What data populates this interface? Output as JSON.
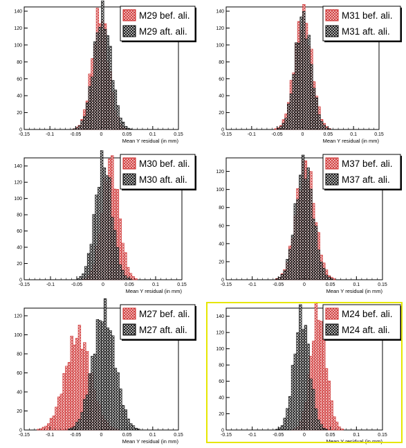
{
  "colors": {
    "before": "#cc2a2a",
    "before_fill": "#f3c6c6",
    "after": "#000000",
    "after_fill": "#bfbfbf",
    "highlight": "#e6e600"
  },
  "chart_data": [
    {
      "type": "histogram",
      "name": "M29",
      "xlabel": "Mean Y residual (in mm)",
      "xlim": [
        -0.15,
        0.15
      ],
      "ylim": [
        0,
        145
      ],
      "xticks": [
        "-0.15",
        "-0.1",
        "-0.05",
        "0",
        "0.05",
        "0.1",
        "0.15"
      ],
      "yticks": [
        "0",
        "20",
        "40",
        "60",
        "80",
        "100",
        "120",
        "140"
      ],
      "legend": [
        "M29 bef. ali.",
        "M29 aft. ali."
      ],
      "series": [
        {
          "name": "M29 bef. ali.",
          "mean": -0.002,
          "sigma": 0.016,
          "peak": 136
        },
        {
          "name": "M29 aft. ali.",
          "mean": 0.002,
          "sigma": 0.017,
          "peak": 136
        }
      ]
    },
    {
      "type": "histogram",
      "name": "M31",
      "xlabel": "Mean Y residual (in mm)",
      "xlim": [
        -0.15,
        0.15
      ],
      "ylim": [
        0,
        145
      ],
      "xticks": [
        "-0.15",
        "-0.1",
        "-0.05",
        "0",
        "0.05",
        "0.1",
        "0.15"
      ],
      "yticks": [
        "0",
        "20",
        "40",
        "60",
        "80",
        "100",
        "120",
        "140"
      ],
      "legend": [
        "M31 bef. ali.",
        "M31 aft. ali."
      ],
      "series": [
        {
          "name": "M31 bef. ali.",
          "mean": 0.001,
          "sigma": 0.017,
          "peak": 136
        },
        {
          "name": "M31 aft. ali.",
          "mean": 0.001,
          "sigma": 0.016,
          "peak": 132
        }
      ]
    },
    {
      "type": "histogram",
      "name": "M30",
      "xlabel": "Mean Y residual (in mm)",
      "xlim": [
        -0.15,
        0.15
      ],
      "ylim": [
        0,
        150
      ],
      "xticks": [
        "-0.15",
        "-0.1",
        "-0.05",
        "0",
        "0.05",
        "0.1",
        "0.15"
      ],
      "yticks": [
        "0",
        "20",
        "40",
        "60",
        "80",
        "100",
        "120",
        "140"
      ],
      "legend": [
        "M30 bef. ali.",
        "M30 aft. ali."
      ],
      "series": [
        {
          "name": "M30 bef. ali.",
          "mean": 0.014,
          "sigma": 0.016,
          "peak": 146
        },
        {
          "name": "M30 aft. ali.",
          "mean": 0.001,
          "sigma": 0.016,
          "peak": 146
        }
      ]
    },
    {
      "type": "histogram",
      "name": "M37",
      "xlabel": "Mean Y residual (in mm)",
      "xlim": [
        -0.15,
        0.15
      ],
      "ylim": [
        0,
        135
      ],
      "xticks": [
        "-0.15",
        "-0.1",
        "-0.05",
        "0",
        "0.05",
        "0.1",
        "0.15"
      ],
      "yticks": [
        "0",
        "20",
        "40",
        "60",
        "80",
        "100",
        "120"
      ],
      "legend": [
        "M37 bef. ali.",
        "M37 aft. ali."
      ],
      "series": [
        {
          "name": "M37 bef. ali.",
          "mean": 0.002,
          "sigma": 0.018,
          "peak": 128
        },
        {
          "name": "M37 aft. ali.",
          "mean": 0.0,
          "sigma": 0.017,
          "peak": 128
        }
      ]
    },
    {
      "type": "histogram",
      "name": "M27",
      "xlabel": "Mean Y residual (in mm)",
      "xlim": [
        -0.15,
        0.15
      ],
      "ylim": [
        0,
        128
      ],
      "xticks": [
        "-0.15",
        "-0.1",
        "-0.05",
        "0",
        "0.05",
        "0.1",
        "0.15"
      ],
      "yticks": [
        "0",
        "20",
        "40",
        "60",
        "80",
        "100",
        "120"
      ],
      "legend": [
        "M27 bef. ali.",
        "M27 aft. ali."
      ],
      "series": [
        {
          "name": "M27 bef. ali.",
          "mean": -0.045,
          "sigma": 0.025,
          "peak": 100
        },
        {
          "name": "M27 aft. ali.",
          "mean": 0.005,
          "sigma": 0.022,
          "peak": 124
        }
      ]
    },
    {
      "type": "histogram",
      "name": "M24",
      "xlabel": "Mean Y residual (in mm)",
      "xlim": [
        -0.15,
        0.15
      ],
      "ylim": [
        0,
        150
      ],
      "xticks": [
        "-0.15",
        "-0.1",
        "-0.05",
        "0",
        "0.05",
        "0.1",
        "0.15"
      ],
      "yticks": [
        "0",
        "20",
        "40",
        "60",
        "80",
        "100",
        "120",
        "140"
      ],
      "legend": [
        "M24 bef. ali.",
        "M24 aft. ali."
      ],
      "series": [
        {
          "name": "M24 bef. ali.",
          "mean": 0.027,
          "sigma": 0.015,
          "peak": 146
        },
        {
          "name": "M24 aft. ali.",
          "mean": -0.005,
          "sigma": 0.015,
          "peak": 141
        }
      ]
    }
  ]
}
